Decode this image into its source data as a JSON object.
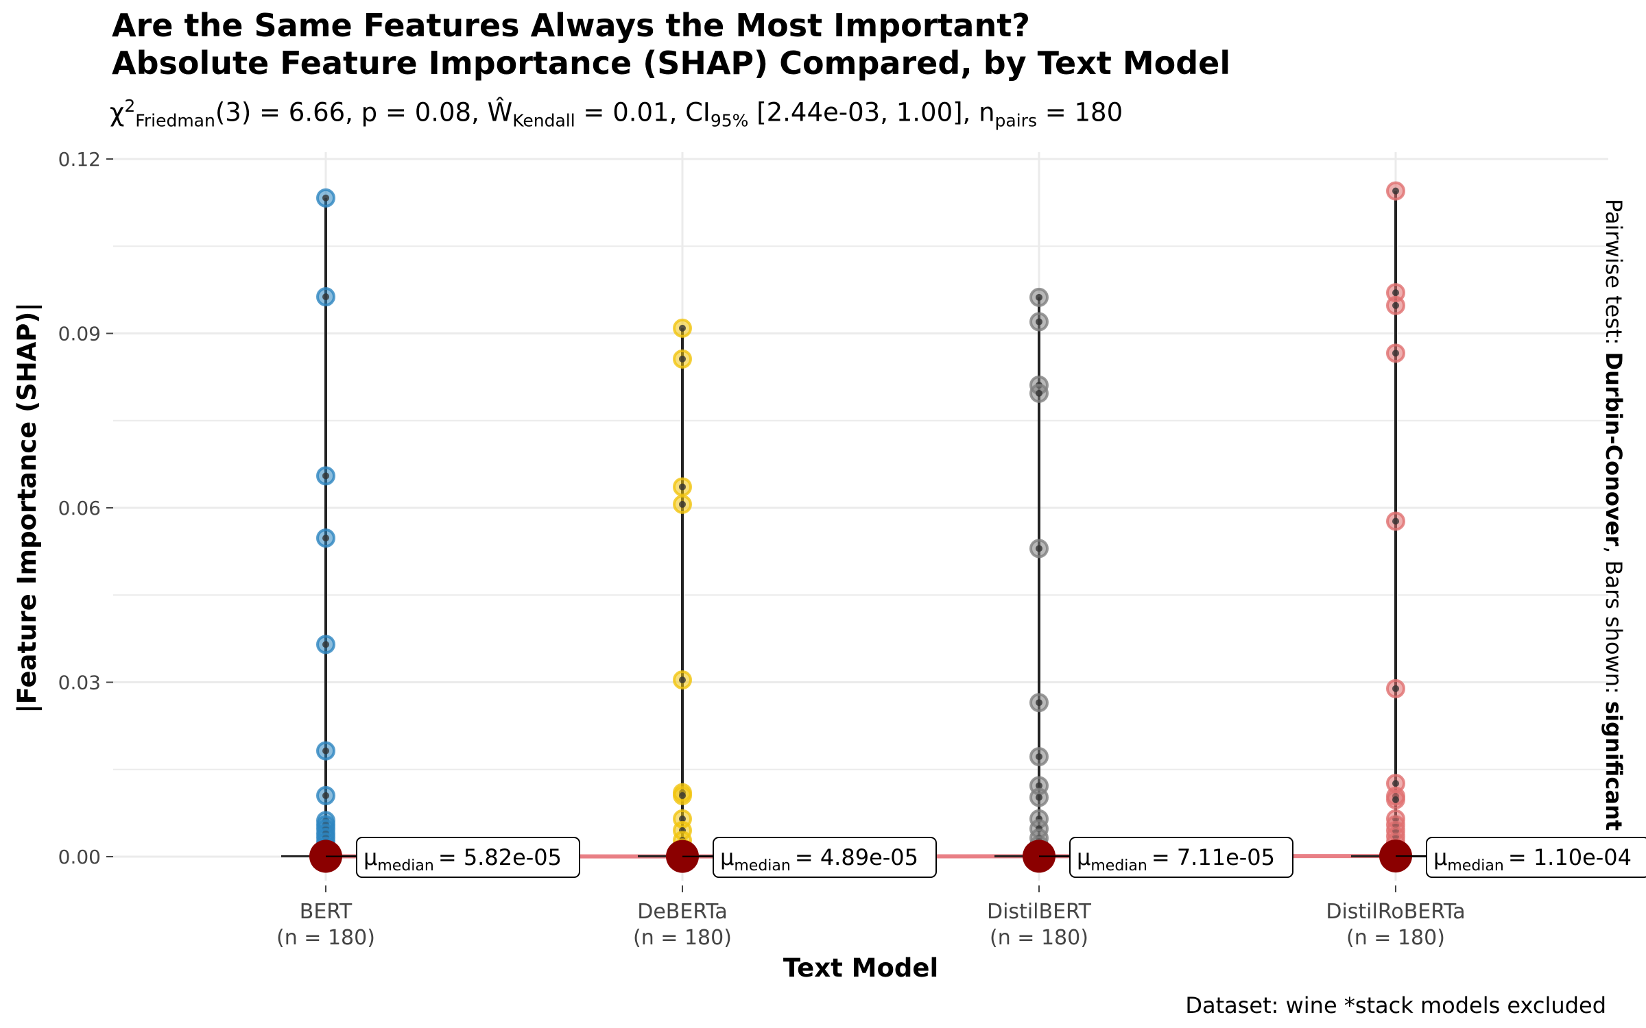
{
  "title_line1": "Are the Same Features Always the Most Important?",
  "title_line2": "Absolute Feature Importance (SHAP) Compared, by Text Model",
  "subtitle": {
    "chi": "χ",
    "chi_sup": "2",
    "chi_sub": "Friedman",
    "chi_val": "(3) = 6.66, p = 0.08, ",
    "w": "Ŵ",
    "w_sub": "Kendall",
    "w_val": " = 0.01, CI",
    "ci_sub": "95%",
    "ci_val": " [2.44e-03, 1.00], n",
    "n_sub": "pairs",
    "n_val": " = 180"
  },
  "side_note": {
    "prefix": "Pairwise test: ",
    "test": "Durbin-Conover",
    "middle": ", Bars shown: ",
    "shown": "significant"
  },
  "caption": "Dataset:  wine *stack models excluded",
  "colors": {
    "BERT": "#2E86C1",
    "DeBERTa": "#F1C40F",
    "DistilBERT": "#808080",
    "DistilRoBERTa": "#E07070",
    "median_point": "#8B0000",
    "median_line": "#E8737A",
    "grid": "#EBEBEB"
  },
  "chart_data": {
    "type": "scatter",
    "xlabel": "Text Model",
    "ylabel": "|Feature Importance (SHAP)|",
    "ylim": [
      -0.005,
      0.122
    ],
    "yticks": [
      "0.00",
      "0.03",
      "0.06",
      "0.09",
      "0.12"
    ],
    "ytick_values": [
      0,
      0.03,
      0.06,
      0.09,
      0.12
    ],
    "grid": true,
    "categories": [
      "BERT",
      "DeBERTa",
      "DistilBERT",
      "DistilRoBERTa"
    ],
    "category_n": [
      "(n = 180)",
      "(n = 180)",
      "(n = 180)",
      "(n = 180)"
    ],
    "median_label_prefix": "μ",
    "median_label_sub": "median",
    "medians": [
      5.82e-05,
      4.89e-05,
      7.11e-05,
      0.00011
    ],
    "median_labels": [
      "= 5.82e-05",
      "= 4.89e-05",
      "= 7.11e-05",
      "= 1.10e-04"
    ],
    "series": [
      {
        "name": "BERT",
        "values": [
          0.1133,
          0.0963,
          0.0655,
          0.0548,
          0.0365,
          0.0182,
          0.0105,
          0.0062,
          0.0055,
          0.0048,
          0.004,
          0.0033,
          0.0025,
          0.0018,
          0.0012,
          0.0006,
          0.0003,
          0.0001
        ]
      },
      {
        "name": "DeBERTa",
        "values": [
          0.0909,
          0.0856,
          0.0636,
          0.0606,
          0.0304,
          0.011,
          0.0105,
          0.0065,
          0.0045,
          0.0028,
          0.0015,
          0.0006,
          0.0002
        ]
      },
      {
        "name": "DistilBERT",
        "values": [
          0.0962,
          0.092,
          0.0811,
          0.0797,
          0.053,
          0.0265,
          0.0172,
          0.0122,
          0.0102,
          0.0065,
          0.0048,
          0.0032,
          0.002,
          0.001,
          0.0004,
          0.0001
        ]
      },
      {
        "name": "DistilRoBERTa",
        "values": [
          0.1145,
          0.097,
          0.0948,
          0.0866,
          0.0577,
          0.0289,
          0.0126,
          0.0104,
          0.0098,
          0.0065,
          0.0055,
          0.0045,
          0.0035,
          0.0025,
          0.0015,
          0.0008,
          0.0003
        ]
      }
    ]
  }
}
